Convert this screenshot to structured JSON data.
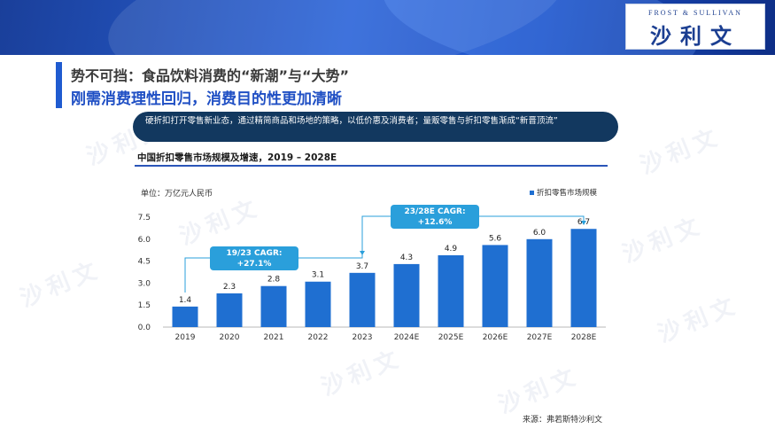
{
  "logo": {
    "top_text": "FROST & SULLIVAN",
    "main_text": "沙利文"
  },
  "title_line1": "势不可挡：食品饮料消费的“新潮”与“大势”",
  "title_line2": "刚需消费理性回归，消费目的性更加清晰",
  "summary": "硬折扣打开零售新业态，通过精简商品和场地的策略，以低价惠及消费者；量贩零售与折扣零售渐成“新晋顶流”",
  "source": "来源：弗若斯特沙利文",
  "colors": {
    "bar": "#1f6fd1",
    "cagr_box": "#2a9fdb",
    "accent": "#1f4fc4",
    "pill": "#12385f"
  },
  "chart_data": {
    "type": "bar",
    "title": "中国折扣零售市场规模及增速，2019 – 2028E",
    "unit": "单位：万亿元人民币",
    "legend": "折扣零售市场规模",
    "legend_position": "top-right",
    "categories": [
      "2019",
      "2020",
      "2021",
      "2022",
      "2023",
      "2024E",
      "2025E",
      "2026E",
      "2027E",
      "2028E"
    ],
    "values": [
      1.4,
      2.3,
      2.8,
      3.1,
      3.7,
      4.3,
      4.9,
      5.6,
      6.0,
      6.7
    ],
    "value_labels": [
      "1.4",
      "2.3",
      "2.8",
      "3.1",
      "3.7",
      "4.3",
      "4.9",
      "5.6",
      "6.0",
      "6.7"
    ],
    "y_ticks": [
      "0.0",
      "1.5",
      "3.0",
      "4.5",
      "6.0",
      "7.5"
    ],
    "ylim": [
      0,
      7.5
    ],
    "grid": false,
    "annotations": [
      {
        "line1": "19/23 CAGR:",
        "line2": "+27.1%",
        "from": "2019",
        "to": "2023"
      },
      {
        "line1": "23/28E CAGR:",
        "line2": "+12.6%",
        "from": "2023",
        "to": "2028E"
      }
    ]
  }
}
